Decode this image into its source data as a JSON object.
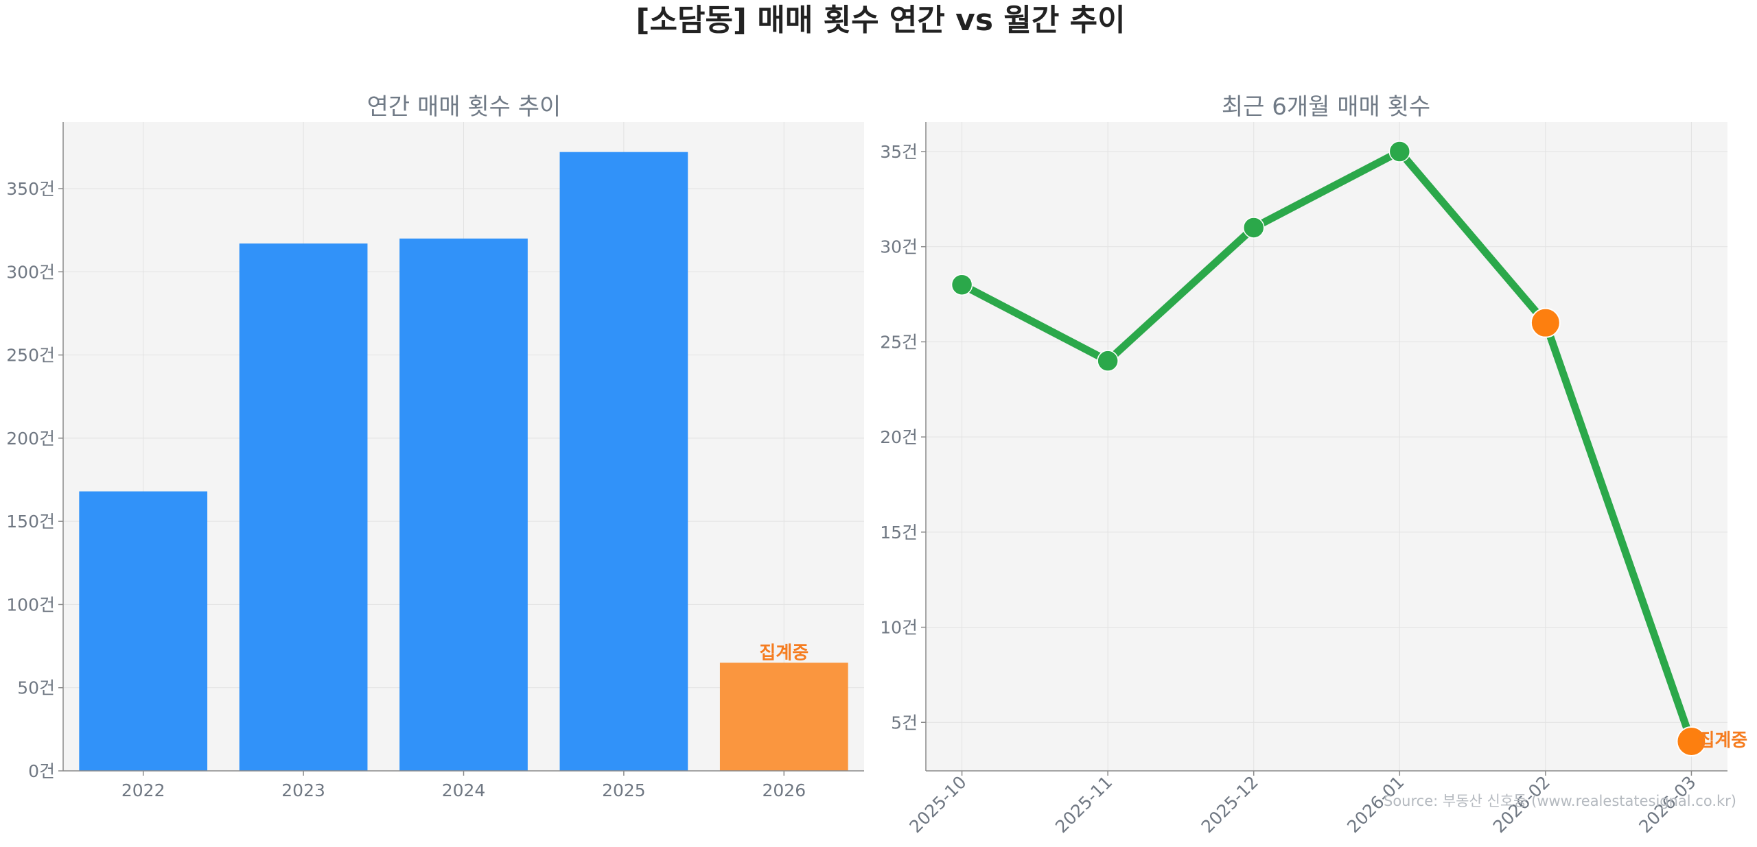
{
  "title": "[소담동] 매매 횟수 연간 vs 월간 추이",
  "source": "Source: 부동산 신호등 (www.realestatesignal.co.kr)",
  "colors": {
    "bar": "#3192f9",
    "bar_pending": "#fa963f",
    "line": "#2ba84a",
    "point_pending": "#fd7f0f",
    "pending_text": "#f57c1f",
    "plot_bg": "#f4f4f4",
    "grid": "#e2e2e2",
    "axis": "#8a8a8a"
  },
  "chart_data": [
    {
      "type": "bar",
      "title": "연간 매매 횟수 추이",
      "categories": [
        "2022",
        "2023",
        "2024",
        "2025",
        "2026"
      ],
      "values": [
        168,
        317,
        320,
        372,
        65
      ],
      "pending_index": 4,
      "pending_label": "집계중",
      "ylim": [
        0,
        390
      ],
      "yticks": [
        0,
        50,
        100,
        150,
        200,
        250,
        300,
        350
      ],
      "yunit": "건",
      "grid": true
    },
    {
      "type": "line",
      "title": "최근 6개월 매매 횟수",
      "categories": [
        "2025-10",
        "2025-11",
        "2025-12",
        "2026-01",
        "2026-02",
        "2026-03"
      ],
      "values": [
        28,
        24,
        31,
        35,
        26,
        4
      ],
      "highlight_indices": [
        4,
        5
      ],
      "pending_index": 5,
      "pending_label": "집계중",
      "ylim": [
        2.45,
        36.55
      ],
      "yticks": [
        5,
        10,
        15,
        20,
        25,
        30,
        35
      ],
      "yunit": "건",
      "grid": true
    }
  ]
}
